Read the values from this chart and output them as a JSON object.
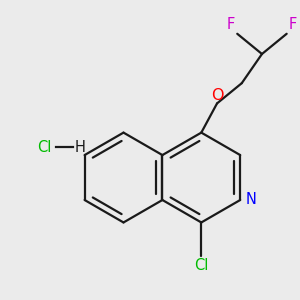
{
  "background_color": "#ebebeb",
  "bond_color": "#1a1a1a",
  "N_color": "#0000ff",
  "O_color": "#ff0000",
  "F_color": "#cc00cc",
  "Cl_color": "#00bb00",
  "line_width": 1.6,
  "font_size": 10.5,
  "figsize": [
    3.0,
    3.0
  ],
  "dpi": 100,
  "xlim": [
    0,
    10
  ],
  "ylim": [
    0,
    10
  ],
  "HCl_x": 1.2,
  "HCl_y": 5.1
}
